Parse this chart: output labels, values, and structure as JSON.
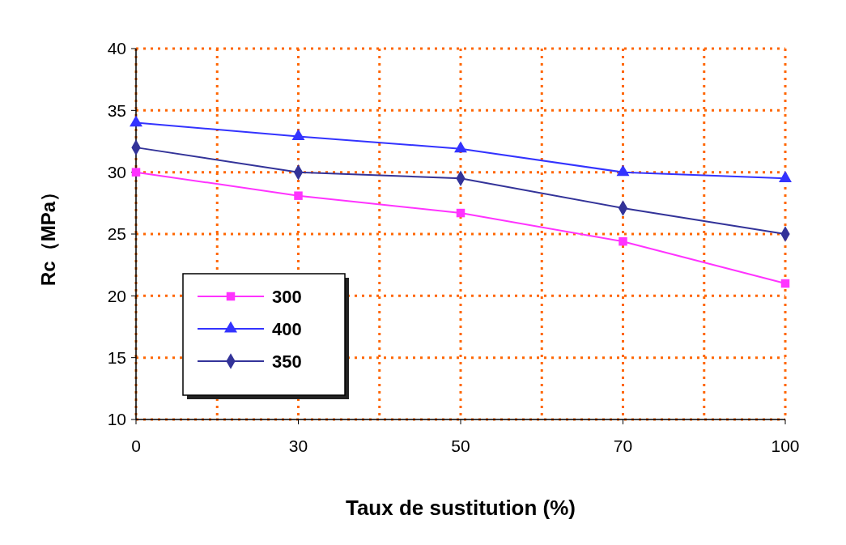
{
  "chart_data": {
    "type": "line",
    "xlabel": "Taux de sustitution (%)",
    "ylabel": "Rc（MPa）",
    "categories": [
      "0",
      "30",
      "50",
      "70",
      "100"
    ],
    "series": [
      {
        "name": "300",
        "color": "#ff33ff",
        "marker": "square",
        "values": [
          30,
          28.1,
          26.7,
          24.4,
          21
        ]
      },
      {
        "name": "400",
        "color": "#3333ff",
        "marker": "triangle",
        "values": [
          34,
          32.9,
          31.9,
          30,
          29.5
        ]
      },
      {
        "name": "350",
        "color": "#333399",
        "marker": "diamond",
        "values": [
          32,
          30,
          29.5,
          27.1,
          25
        ]
      }
    ],
    "ylim": [
      10,
      40
    ],
    "yticks": [
      10,
      15,
      20,
      25,
      30,
      35,
      40
    ],
    "grid": true,
    "legend": "bottom left"
  }
}
